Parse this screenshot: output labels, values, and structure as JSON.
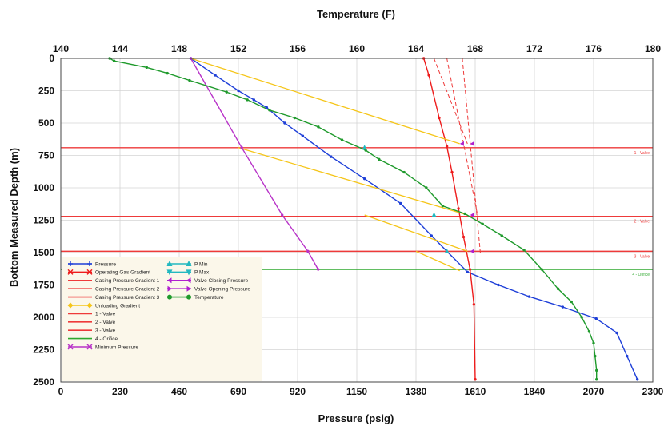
{
  "chart_data": {
    "type": "line",
    "title": "",
    "xlabel": "Pressure (psig)",
    "x2label": "Temperature (F)",
    "ylabel": "Bottom Measured Depth (m)",
    "xlim": [
      0,
      2300
    ],
    "x2lim": [
      140,
      180
    ],
    "ylim": [
      2500,
      0
    ],
    "x_ticks": [
      "0",
      "230",
      "460",
      "690",
      "920",
      "1150",
      "1380",
      "1610",
      "1840",
      "2070",
      "2300"
    ],
    "x2_ticks": [
      "140",
      "144",
      "148",
      "152",
      "156",
      "160",
      "164",
      "168",
      "172",
      "176",
      "180"
    ],
    "y_ticks": [
      "0",
      "250",
      "500",
      "750",
      "1000",
      "1250",
      "1500",
      "1750",
      "2000",
      "2250",
      "2500"
    ],
    "grid": true,
    "colors": {
      "pressure": "#1e3fd8",
      "gas_gradient": "#ee1c1c",
      "unloading": "#f5c518",
      "valve_line": "#ee3a3a",
      "orifice_line": "#2ea82e",
      "min_pressure": "#b832c8",
      "temperature": "#1f9a2c",
      "pmin_pmax": "#22b8c0",
      "valve_open_close": "#b020d0",
      "legend_bg": "#fbf7ea"
    },
    "series": [
      {
        "name": "Pressure",
        "axis": "pressure",
        "color": "#1e3fd8",
        "points": [
          [
            505,
            0
          ],
          [
            600,
            130
          ],
          [
            690,
            250
          ],
          [
            750,
            320
          ],
          [
            800,
            380
          ],
          [
            870,
            500
          ],
          [
            940,
            600
          ],
          [
            1050,
            760
          ],
          [
            1180,
            930
          ],
          [
            1320,
            1120
          ],
          [
            1440,
            1370
          ],
          [
            1580,
            1650
          ],
          [
            1700,
            1750
          ],
          [
            1820,
            1840
          ],
          [
            1950,
            1920
          ],
          [
            2080,
            2010
          ],
          [
            2160,
            2120
          ],
          [
            2200,
            2300
          ],
          [
            2240,
            2480
          ]
        ]
      },
      {
        "name": "Operating Gas Gradient",
        "axis": "pressure",
        "color": "#ee1c1c",
        "points": [
          [
            1410,
            0
          ],
          [
            1430,
            130
          ],
          [
            1470,
            460
          ],
          [
            1500,
            680
          ],
          [
            1520,
            880
          ],
          [
            1545,
            1160
          ],
          [
            1565,
            1380
          ],
          [
            1590,
            1630
          ],
          [
            1605,
            1900
          ],
          [
            1610,
            2480
          ]
        ]
      },
      {
        "name": "Unloading Gradient",
        "axis": "pressure",
        "color": "#f5c518",
        "segments": [
          [
            [
              505,
              0
            ],
            [
              1550,
              660
            ]
          ],
          [
            [
              690,
              690
            ],
            [
              1580,
              1210
            ]
          ],
          [
            [
              1180,
              1210
            ],
            [
              1580,
              1490
            ]
          ],
          [
            [
              1380,
              1490
            ],
            [
              1550,
              1640
            ]
          ]
        ]
      },
      {
        "name": "Casing Pressure Gradient",
        "axis": "pressure",
        "color": "#ee3a3a",
        "segments": [
          [
            [
              1450,
              0
            ],
            [
              1580,
              660
            ]
          ],
          [
            [
              1500,
              0
            ],
            [
              1620,
              1220
            ]
          ],
          [
            [
              1560,
              0
            ],
            [
              1630,
              1500
            ]
          ]
        ]
      },
      {
        "name": "Minimum Pressure",
        "axis": "pressure",
        "color": "#b832c8",
        "points": [
          [
            505,
            0
          ],
          [
            703,
            690
          ],
          [
            860,
            1210
          ],
          [
            960,
            1490
          ],
          [
            1000,
            1630
          ]
        ]
      },
      {
        "name": "Temperature",
        "axis": "temperature",
        "color": "#1f9a2c",
        "points": [
          [
            143.3,
            0
          ],
          [
            143.6,
            20
          ],
          [
            145.8,
            70
          ],
          [
            147.2,
            115
          ],
          [
            148.7,
            170
          ],
          [
            151.2,
            260
          ],
          [
            152.6,
            320
          ],
          [
            154.1,
            400
          ],
          [
            155.8,
            460
          ],
          [
            157.4,
            530
          ],
          [
            159.0,
            630
          ],
          [
            160.6,
            710
          ],
          [
            161.5,
            780
          ],
          [
            163.2,
            880
          ],
          [
            164.7,
            1000
          ],
          [
            165.8,
            1140
          ],
          [
            167.3,
            1200
          ],
          [
            168.5,
            1280
          ],
          [
            169.8,
            1370
          ],
          [
            171.3,
            1480
          ],
          [
            172.5,
            1630
          ],
          [
            173.6,
            1780
          ],
          [
            174.5,
            1880
          ],
          [
            175.2,
            2000
          ],
          [
            175.7,
            2110
          ],
          [
            176.0,
            2200
          ],
          [
            176.1,
            2300
          ],
          [
            176.2,
            2410
          ],
          [
            176.2,
            2480
          ]
        ]
      }
    ],
    "p_min_markers": [
      [
        1180,
        690
      ],
      [
        1450,
        1210
      ],
      [
        1500,
        1490
      ]
    ],
    "valve_markers": [
      [
        1560,
        660
      ],
      [
        1600,
        660
      ],
      [
        1600,
        1210
      ],
      [
        1600,
        1490
      ]
    ],
    "horizontal_lines": [
      {
        "depth": 690,
        "label": "1 - Valve",
        "color": "#ee3a3a"
      },
      {
        "depth": 1220,
        "label": "2 - Valve",
        "color": "#ee3a3a"
      },
      {
        "depth": 1490,
        "label": "3 - Valve",
        "color": "#ee3a3a"
      },
      {
        "depth": 1630,
        "label": "4 - Orifice",
        "color": "#2ea82e"
      }
    ],
    "legend": {
      "placement": "bottom-left",
      "col1": [
        {
          "label": "Pressure",
          "color": "#1e3fd8",
          "marker": "plus"
        },
        {
          "label": "Operating Gas Gradient",
          "color": "#ee1c1c",
          "marker": "x"
        },
        {
          "label": "Casing Pressure Gradient 1",
          "color": "#ee3a3a",
          "marker": "none"
        },
        {
          "label": "Casing Pressure Gradient 2",
          "color": "#ee3a3a",
          "marker": "none"
        },
        {
          "label": "Casing Pressure Gradient 3",
          "color": "#ee3a3a",
          "marker": "none"
        },
        {
          "label": "Unloading Gradient",
          "color": "#f5c518",
          "marker": "diamond"
        },
        {
          "label": "1 - Valve",
          "color": "#ee3a3a",
          "marker": "none"
        },
        {
          "label": "2 - Valve",
          "color": "#ee3a3a",
          "marker": "none"
        },
        {
          "label": "3 - Valve",
          "color": "#ee3a3a",
          "marker": "none"
        },
        {
          "label": "4 - Orifice",
          "color": "#2ea82e",
          "marker": "none"
        },
        {
          "label": "Minimum Pressure",
          "color": "#b832c8",
          "marker": "x"
        }
      ],
      "col2": [
        {
          "label": "P Min",
          "color": "#22b8c0",
          "marker": "tri-up"
        },
        {
          "label": "P Max",
          "color": "#22b8c0",
          "marker": "tri-down"
        },
        {
          "label": "Valve Closing Pressure",
          "color": "#b020d0",
          "marker": "tri-left"
        },
        {
          "label": "Valve Opening Pressure",
          "color": "#b020d0",
          "marker": "tri-right"
        },
        {
          "label": "Temperature",
          "color": "#1f9a2c",
          "marker": "circle"
        }
      ]
    }
  }
}
